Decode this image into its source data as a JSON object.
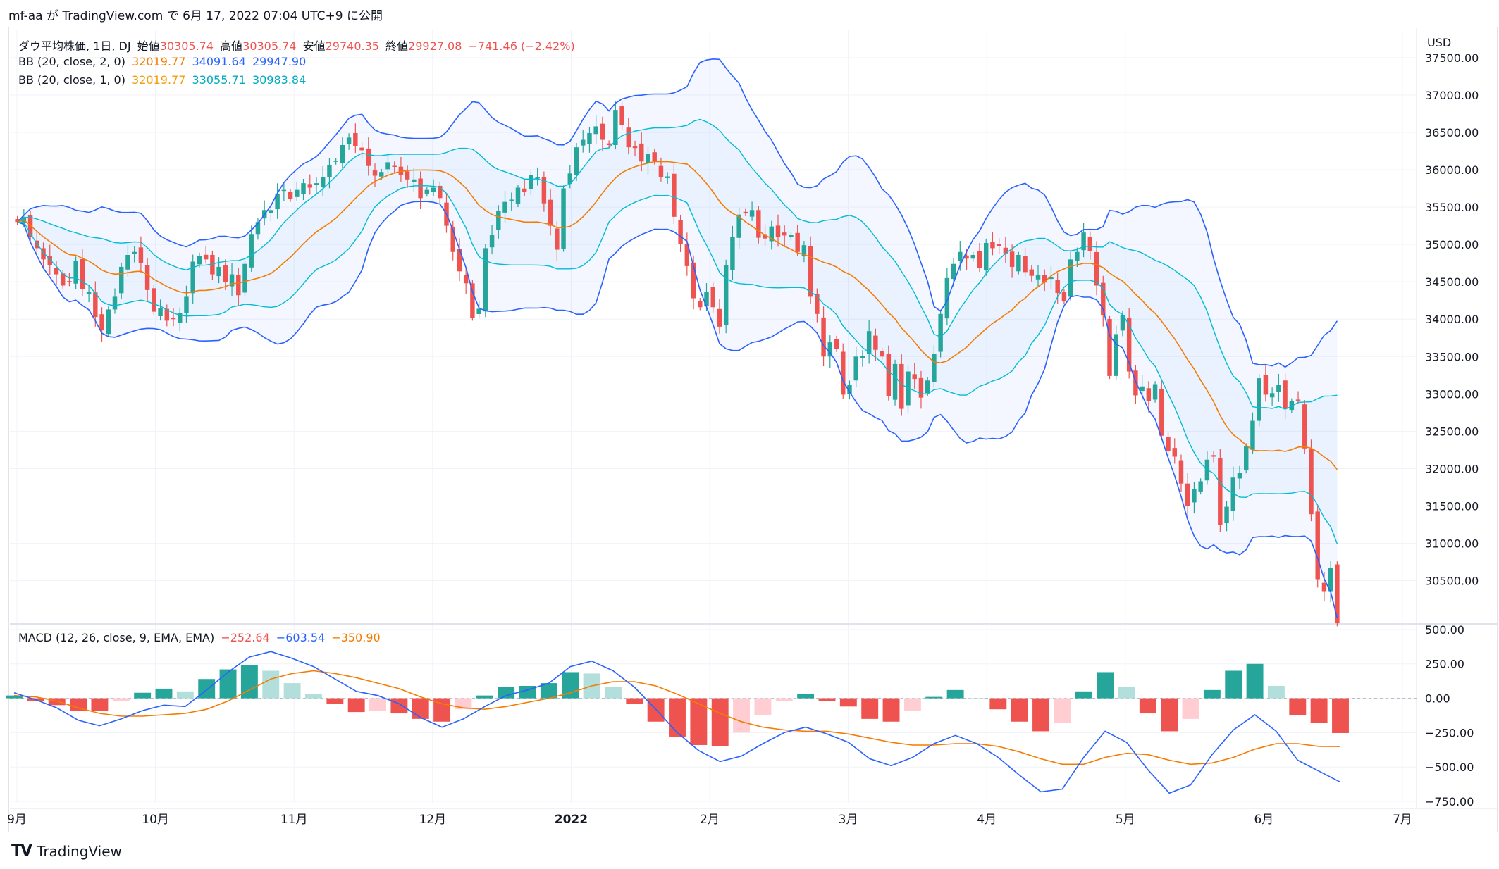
{
  "header": {
    "publish_line": "mf-aa が TradingView.com で 6月 17, 2022 07:04 UTC+9 に公開"
  },
  "legend": {
    "symbol": "ダウ平均株価, 1日, DJ",
    "open_label": "始値",
    "open": "30305.74",
    "high_label": "高値",
    "high": "30305.74",
    "low_label": "安値",
    "low": "29740.35",
    "close_label": "終値",
    "close": "29927.08",
    "change": "−741.46 (−2.42%)",
    "bb2_label": "BB (20, close, 2, 0)",
    "bb2_mid": "32019.77",
    "bb2_upper": "34091.64",
    "bb2_lower": "29947.90",
    "bb1_label": "BB (20, close, 1, 0)",
    "bb1_mid": "32019.77",
    "bb1_upper": "33055.71",
    "bb1_lower": "30983.84",
    "macd_label": "MACD (12, 26, close, 9, EMA, EMA)",
    "macd_hist": "−252.64",
    "macd_line": "−603.54",
    "macd_signal": "−350.90"
  },
  "footer": {
    "brand": "TradingView"
  },
  "colors": {
    "up": "#26a69a",
    "down": "#ef5350",
    "bb_mid": "#f57c00",
    "bb2": "#2962ff",
    "bb1": "#00bcd4",
    "macd": "#2962ff",
    "signal": "#f57c00",
    "hist_up_strong": "#26a69a",
    "hist_up_weak": "#b2dfdb",
    "hist_down_strong": "#ef5350",
    "hist_down_weak": "#ffcdd2"
  },
  "chart_data": [
    {
      "type": "candlestick",
      "title": "ダウ平均株価, 1日, DJ",
      "currency": "USD",
      "x_labels": [
        "9月",
        "10月",
        "11月",
        "12月",
        "2022",
        "2月",
        "3月",
        "4月",
        "5月",
        "6月",
        "7月"
      ],
      "y_ticks": [
        30500,
        31000,
        31500,
        32000,
        32500,
        33000,
        33500,
        34000,
        34500,
        35000,
        35500,
        36000,
        36500,
        37000,
        37500
      ],
      "ylim": [
        29950,
        37800
      ],
      "grid": true,
      "closes_approx": [
        35300,
        35360,
        35100,
        34950,
        34800,
        34720,
        34600,
        34450,
        34500,
        34780,
        34400,
        34370,
        34030,
        33850,
        34130,
        34300,
        34700,
        34860,
        34900,
        34750,
        34390,
        34100,
        34150,
        33980,
        34000,
        34080,
        34300,
        34770,
        34850,
        34800,
        34600,
        34700,
        34500,
        34600,
        34320,
        34740,
        35140,
        35300,
        35460,
        35460,
        35670,
        35730,
        35610,
        35730,
        35820,
        35760,
        35820,
        35900,
        36060,
        36120,
        36330,
        36430,
        36320,
        36260,
        36050,
        35920,
        35970,
        36100,
        36040,
        35930,
        35870,
        35870,
        35620,
        35730,
        35760,
        35620,
        35250,
        34900,
        34640,
        34480,
        34020,
        34140,
        34950,
        35130,
        35450,
        35570,
        35600,
        35760,
        35700,
        35930,
        35900,
        35550,
        35250,
        34930,
        35750,
        35950,
        36300,
        36400,
        36490,
        36580,
        36400,
        36330,
        36800,
        36600,
        36300,
        36290,
        36110,
        36210,
        36110,
        35900,
        35910,
        35370,
        35010,
        34710,
        34280,
        34160,
        34370,
        34160,
        33900,
        34720,
        35100,
        35400,
        35420,
        35460,
        35090,
        35080,
        35240,
        35100,
        35120,
        35130,
        34900,
        34990,
        34300,
        34070,
        33500,
        33690,
        33600,
        32990,
        33120,
        33500,
        33510,
        33840,
        33590,
        33500,
        32970,
        33400,
        32800,
        33300,
        33200,
        32950,
        33180,
        33540,
        34070,
        34550,
        34740,
        34900,
        34810,
        34860,
        34690,
        35020,
        34950,
        34980,
        34880,
        34700,
        34860,
        34630,
        34580,
        34590,
        34490,
        34560,
        34350,
        34240,
        34800,
        34900,
        35160,
        34910,
        34450,
        34050,
        33240,
        33800,
        34050,
        33300,
        32980,
        33100,
        32900,
        33130,
        32440,
        32240,
        32160,
        31800,
        31500,
        31730,
        31830,
        32120,
        32160,
        31250,
        31490,
        31880,
        31940,
        32300,
        32640,
        33210,
        32990,
        33010,
        33120,
        32810,
        32900,
        32920,
        32270,
        31390,
        30520,
        30360,
        30670,
        29930
      ],
      "bb": {
        "period": 20,
        "stdev_outer": 2,
        "stdev_inner": 1,
        "mid": 32019.77,
        "upper2": 34091.64,
        "lower2": 29947.9,
        "upper1": 33055.71,
        "lower1": 30983.84
      }
    },
    {
      "type": "line",
      "title": "MACD (12, 26, close, 9, EMA, EMA)",
      "y_ticks": [
        500,
        250,
        0,
        -250,
        -500,
        -750
      ],
      "ylim": [
        -760,
        520
      ],
      "series": [
        {
          "name": "MACD",
          "values": [
            40,
            -10,
            -70,
            -160,
            -200,
            -150,
            -90,
            -50,
            -60,
            60,
            190,
            300,
            340,
            290,
            230,
            140,
            50,
            20,
            -40,
            -140,
            -210,
            -150,
            -60,
            20,
            60,
            110,
            230,
            270,
            200,
            80,
            -80,
            -250,
            -380,
            -460,
            -420,
            -330,
            -250,
            -210,
            -260,
            -320,
            -440,
            -490,
            -430,
            -330,
            -270,
            -330,
            -430,
            -560,
            -680,
            -660,
            -430,
            -240,
            -320,
            -520,
            -690,
            -630,
            -410,
            -230,
            -120,
            -240,
            -450,
            -530,
            -610
          ]
        },
        {
          "name": "Signal",
          "values": [
            20,
            10,
            -20,
            -70,
            -110,
            -130,
            -130,
            -120,
            -110,
            -80,
            -20,
            60,
            140,
            180,
            200,
            180,
            150,
            110,
            70,
            10,
            -40,
            -70,
            -80,
            -60,
            -30,
            0,
            40,
            90,
            120,
            120,
            90,
            30,
            -40,
            -110,
            -170,
            -210,
            -230,
            -240,
            -240,
            -260,
            -290,
            -320,
            -340,
            -340,
            -330,
            -330,
            -350,
            -390,
            -440,
            -480,
            -480,
            -430,
            -400,
            -410,
            -450,
            -480,
            -470,
            -430,
            -370,
            -330,
            -330,
            -350,
            -351
          ]
        },
        {
          "name": "Histogram",
          "values": [
            20,
            -20,
            -50,
            -90,
            -90,
            -20,
            40,
            70,
            50,
            140,
            210,
            240,
            200,
            110,
            30,
            -40,
            -100,
            -90,
            -110,
            -150,
            -170,
            -80,
            20,
            80,
            90,
            110,
            190,
            180,
            80,
            -40,
            -170,
            -280,
            -340,
            -350,
            -250,
            -120,
            -20,
            30,
            -20,
            -60,
            -150,
            -170,
            -90,
            10,
            60,
            0,
            -80,
            -170,
            -240,
            -180,
            50,
            190,
            80,
            -110,
            -240,
            -150,
            60,
            200,
            250,
            90,
            -120,
            -180,
            -253
          ]
        }
      ]
    }
  ]
}
